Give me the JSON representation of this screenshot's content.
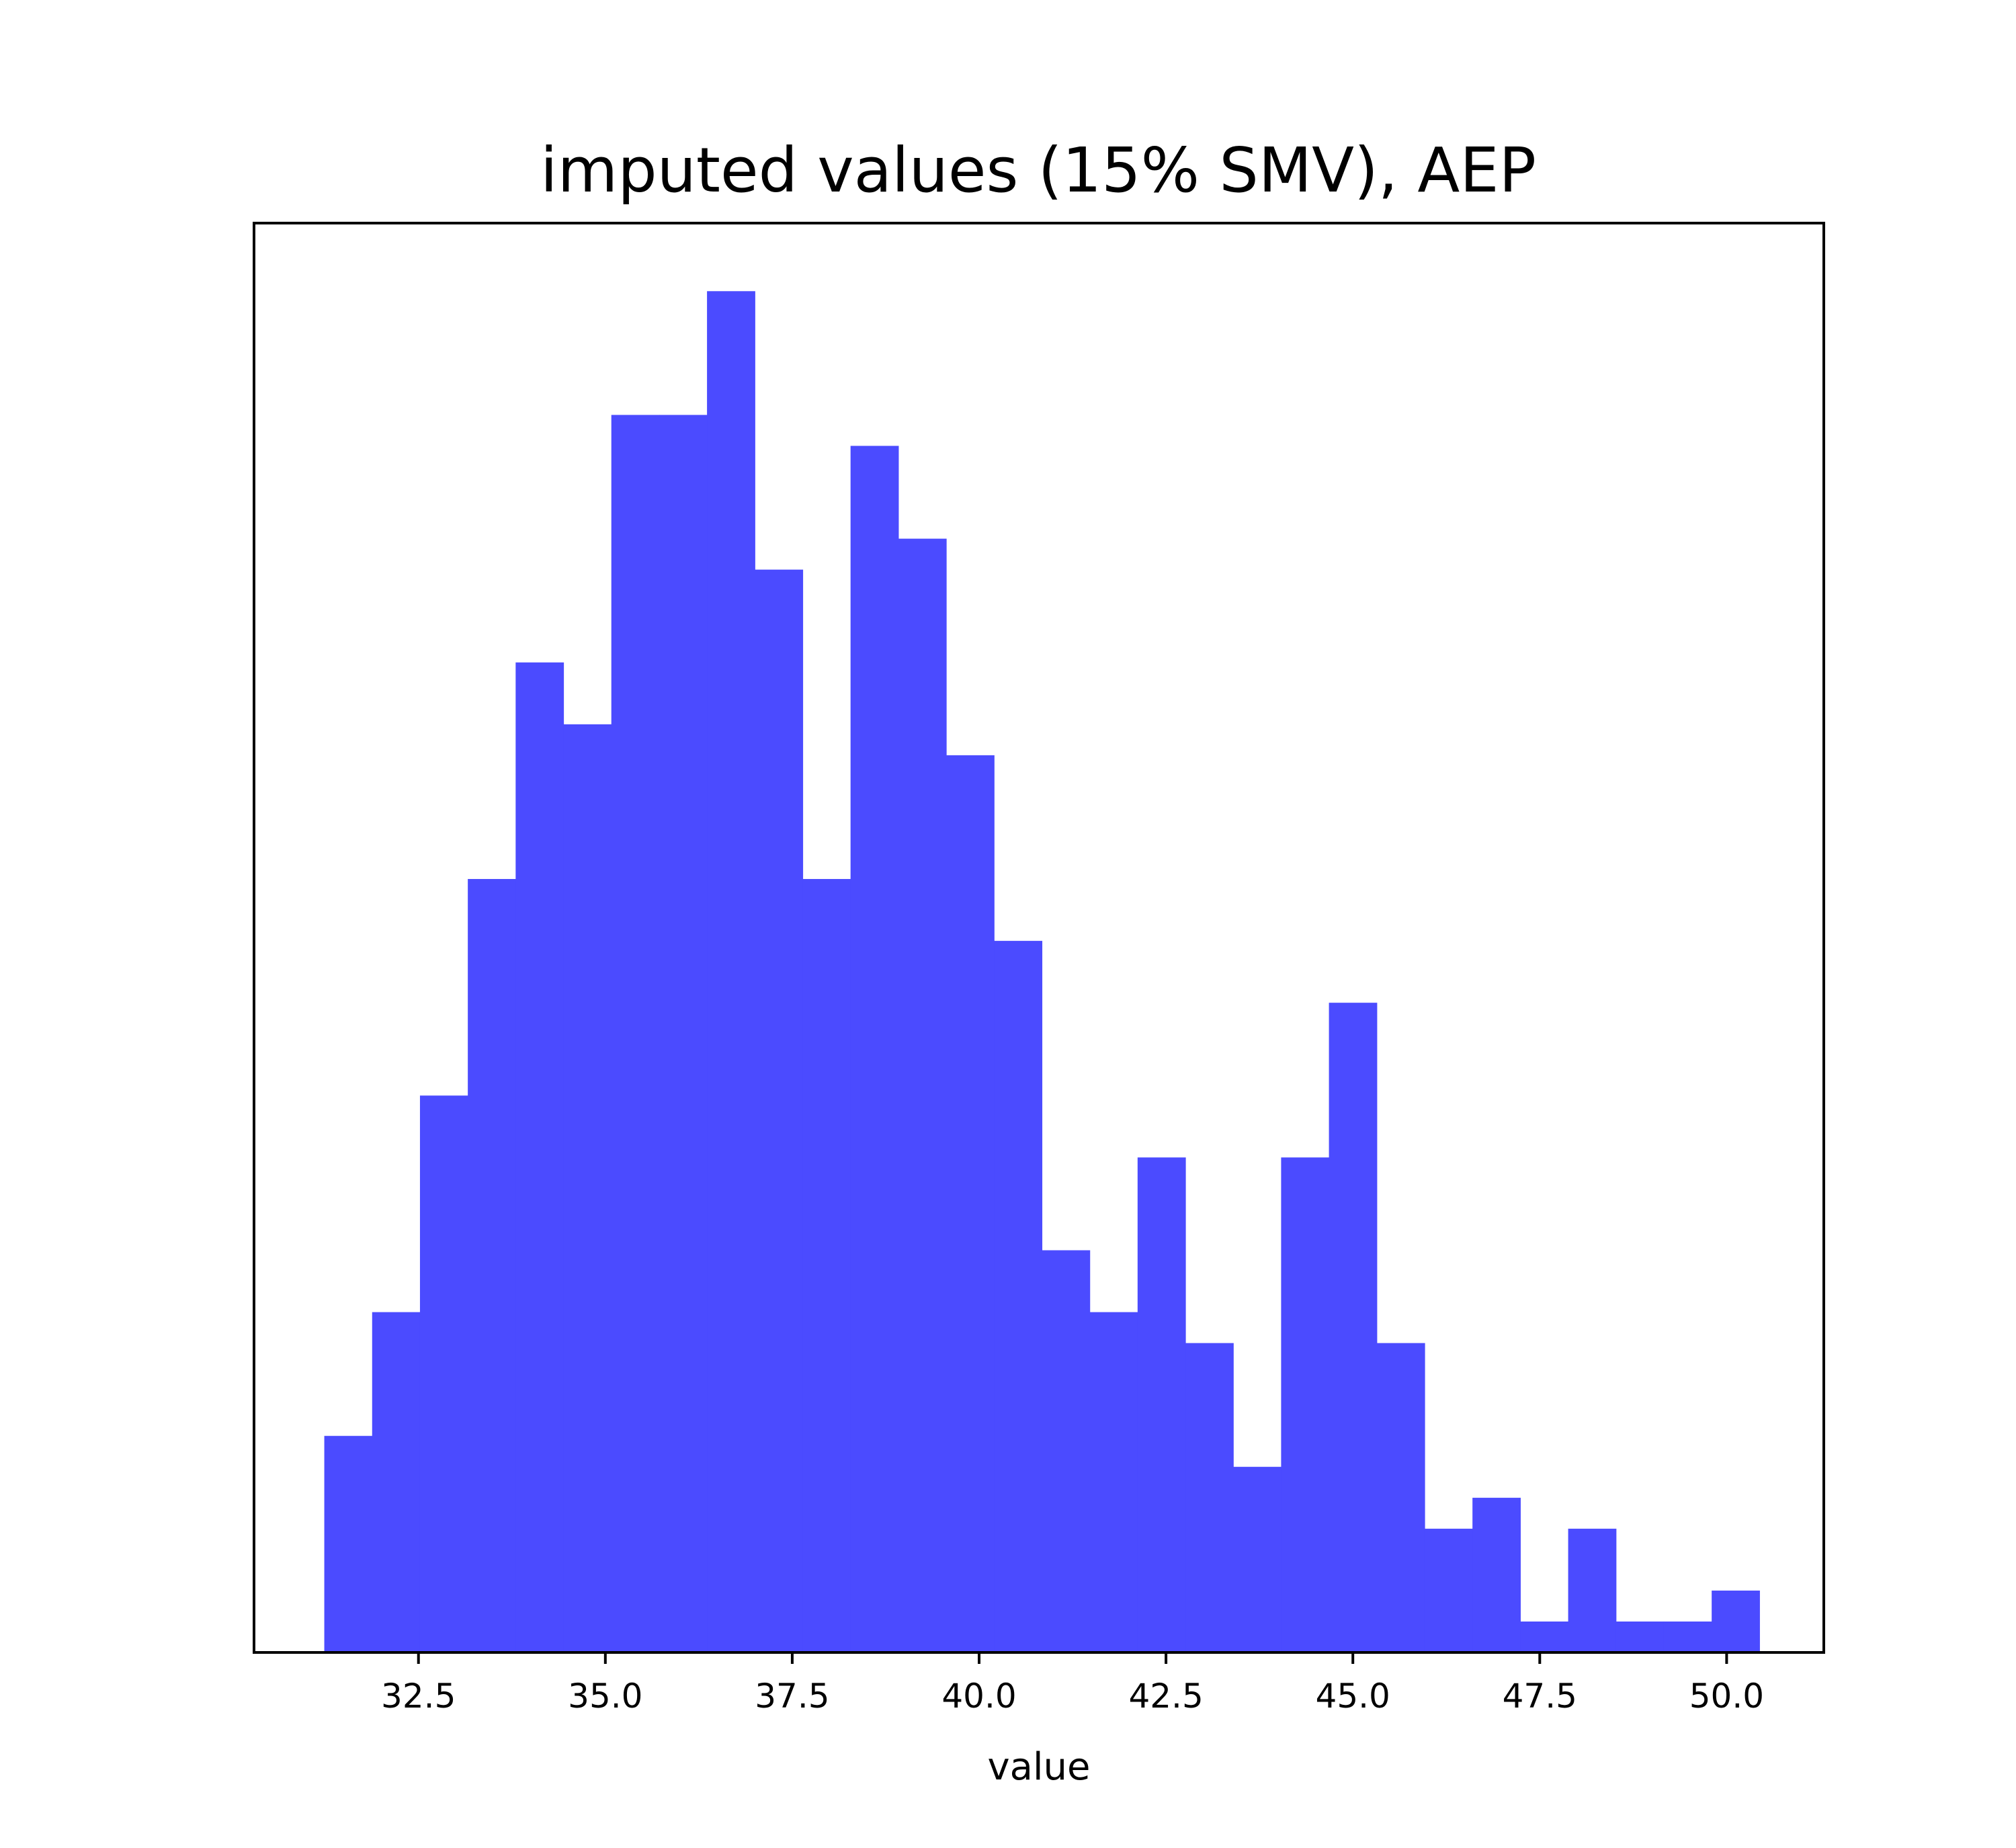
{
  "chart_data": {
    "type": "bar",
    "title": "imputed values (15% SMV), AEP",
    "xlabel": "value",
    "ylabel": "",
    "color": "#4b4bff",
    "bin_edges": [
      31.24,
      31.88,
      32.52,
      33.16,
      33.8,
      34.44,
      35.08,
      35.72,
      36.36,
      37.0,
      37.64,
      38.28,
      38.92,
      39.56,
      40.2,
      40.84,
      41.48,
      42.12,
      42.76,
      43.4,
      44.04,
      44.68,
      45.32,
      45.96,
      46.6,
      47.24,
      47.88,
      48.52,
      49.16,
      49.8,
      50.44
    ],
    "values": [
      7,
      11,
      18,
      25,
      32,
      30,
      40,
      40,
      44,
      35,
      25,
      39,
      36,
      29,
      23,
      13,
      11,
      16,
      10,
      6,
      16,
      21,
      10,
      4,
      5,
      1,
      4,
      1,
      1,
      2
    ],
    "xlim": [
      30.3,
      51.3
    ],
    "ylim": [
      0,
      46.2
    ],
    "xticks": [
      32.5,
      35.0,
      37.5,
      40.0,
      42.5,
      45.0,
      47.5,
      50.0
    ],
    "xtick_labels": [
      "32.5",
      "35.0",
      "37.5",
      "40.0",
      "42.5",
      "45.0",
      "47.5",
      "50.0"
    ],
    "grid": false,
    "legend": "none"
  }
}
